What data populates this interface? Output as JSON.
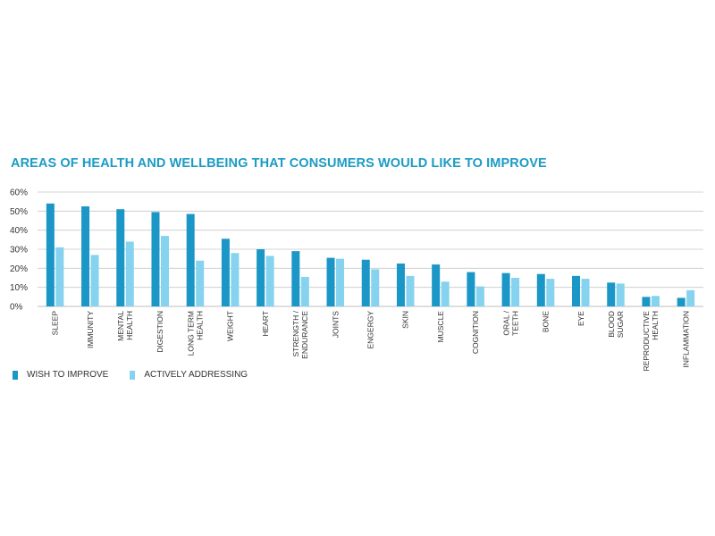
{
  "title": "AREAS OF HEALTH AND WELLBEING THAT CONSUMERS WOULD LIKE TO IMPROVE",
  "colors": {
    "wish": "#1a97c6",
    "active": "#86d3ef",
    "grid": "#c9c9c9",
    "title": "#1b9bc4"
  },
  "legend": {
    "wish": "WISH TO IMPROVE",
    "active": "ACTIVELY ADDRESSING"
  },
  "chart_data": {
    "type": "bar",
    "title": "AREAS OF HEALTH AND WELLBEING THAT CONSUMERS WOULD LIKE TO IMPROVE",
    "categories": [
      [
        "SLEEP"
      ],
      [
        "IMMUNITY"
      ],
      [
        "MENTAL",
        "HEALTH"
      ],
      [
        "DIGESTION"
      ],
      [
        "LONG TERM",
        "HEALTH"
      ],
      [
        "WEIGHT"
      ],
      [
        "HEART"
      ],
      [
        "STRENGTH /",
        "ENDURANCE"
      ],
      [
        "JOINTS"
      ],
      [
        "ENGERGY"
      ],
      [
        "SKIN"
      ],
      [
        "MUSCLE"
      ],
      [
        "COGNITION"
      ],
      [
        "ORAL /",
        "TEETH"
      ],
      [
        "BONE"
      ],
      [
        "EYE"
      ],
      [
        "BLOOD",
        "SUGAR"
      ],
      [
        "REPRODUCTIVE",
        "HEALTH"
      ],
      [
        "INFLAMMATION"
      ]
    ],
    "series": [
      {
        "name": "WISH TO IMPROVE",
        "values": [
          54,
          52.5,
          51,
          49.5,
          48.5,
          35.5,
          30,
          29,
          25.5,
          24.5,
          22.5,
          22,
          18,
          17.5,
          17,
          16,
          12.5,
          5,
          4.5
        ]
      },
      {
        "name": "ACTIVELY ADDRESSING",
        "values": [
          31,
          27,
          34,
          37,
          24,
          28,
          26.5,
          15.5,
          25,
          19.5,
          16,
          13,
          10.5,
          15,
          14.5,
          14.5,
          12,
          5.5,
          8.5
        ]
      }
    ],
    "yticks": [
      "0%",
      "10%",
      "20%",
      "30%",
      "40%",
      "50%",
      "60%"
    ],
    "ylim": [
      0,
      60
    ],
    "xlabel": "",
    "ylabel": "",
    "grid": true,
    "legend_position": "bottom-left"
  }
}
